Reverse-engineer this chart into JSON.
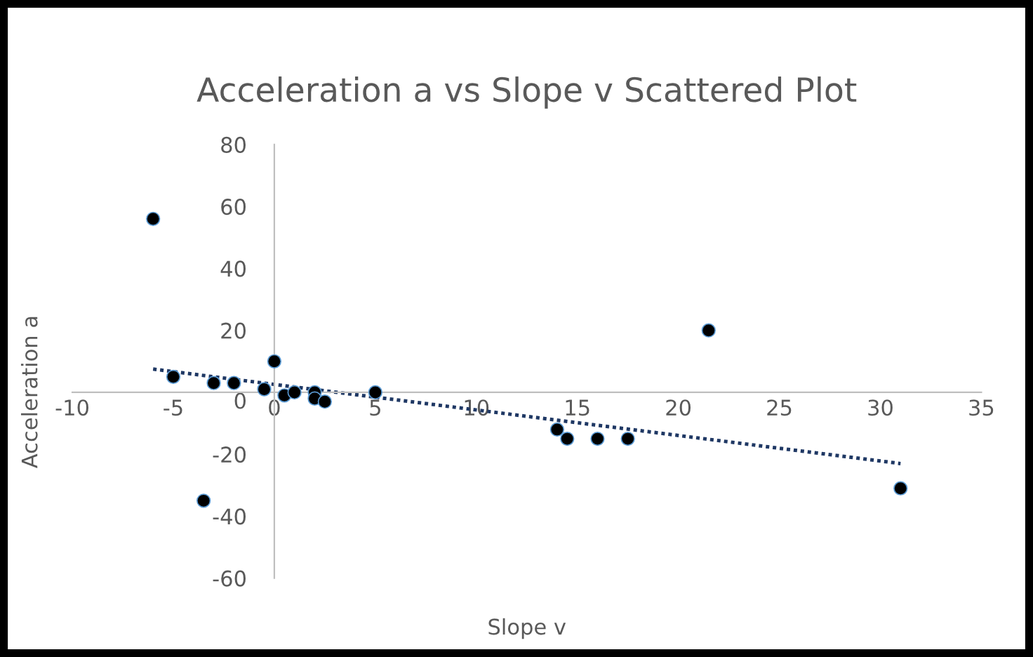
{
  "chart_data": {
    "type": "scatter",
    "title": "Acceleration a vs Slope v Scattered Plot",
    "xlabel": "Slope v",
    "ylabel": "Acceleration a",
    "xlim": [
      -10,
      35
    ],
    "xticks": [
      -10,
      -5,
      0,
      5,
      10,
      15,
      20,
      25,
      30,
      35
    ],
    "ylim": [
      -60,
      80
    ],
    "yticks": [
      -60,
      -40,
      -20,
      0,
      20,
      40,
      60,
      80
    ],
    "grid": false,
    "legend": false,
    "marker": "circle",
    "series": [
      {
        "type": "scatter",
        "color": "#000000",
        "x": [
          -6,
          -5,
          -3,
          -2,
          -0.5,
          -3.5,
          0,
          0.5,
          1,
          2,
          2,
          2.5,
          5,
          14,
          14.5,
          16,
          17.5,
          21.5,
          31
        ],
        "values": [
          56,
          5,
          3,
          3,
          1,
          -35,
          10,
          -1,
          0,
          0,
          -2,
          -3,
          0,
          -12,
          -15,
          -15,
          -15,
          20,
          -31
        ]
      },
      {
        "type": "line",
        "color": "#1f3864",
        "line_style": "dotted",
        "marker": "none",
        "x": [
          -6,
          31
        ],
        "values": [
          7.5,
          -23
        ]
      }
    ]
  }
}
